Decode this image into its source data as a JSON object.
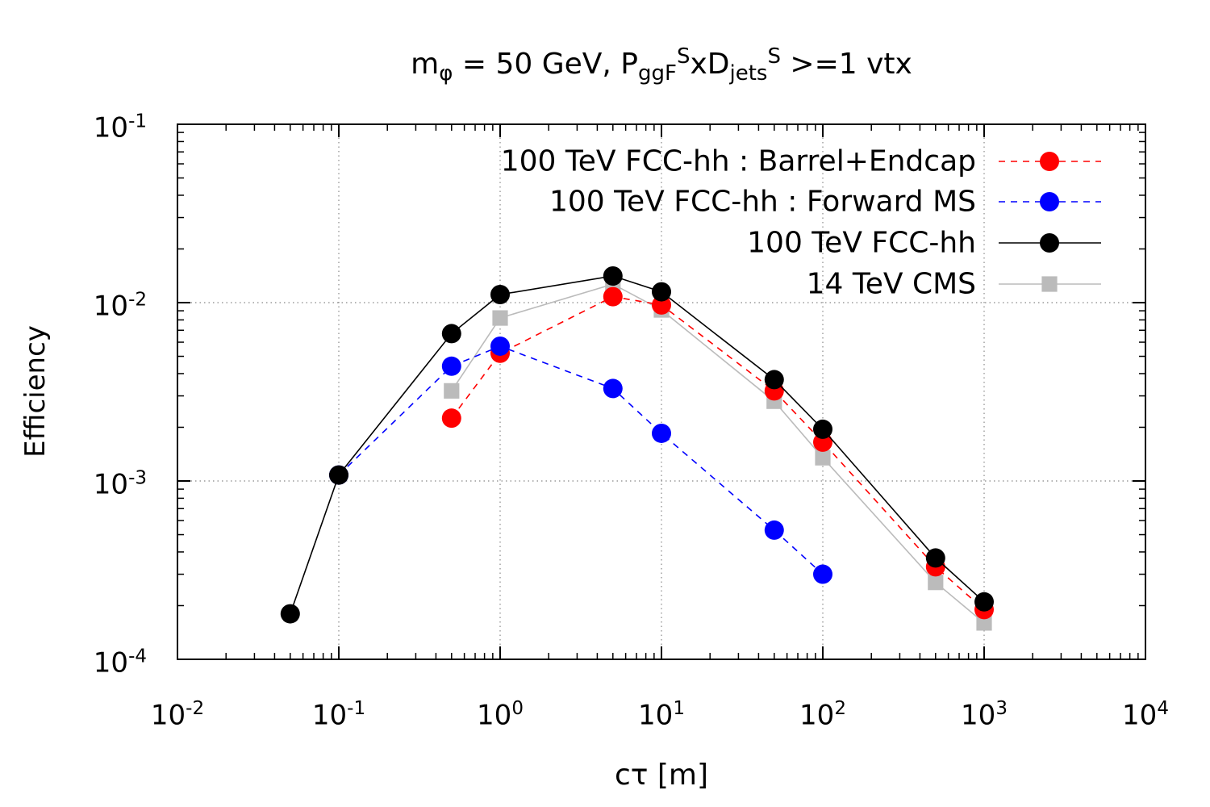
{
  "chart_data": {
    "type": "line",
    "title": {
      "prefix": "m",
      "prefix_sub": "φ",
      "middle": " = 50 GeV, P",
      "p_sub": "ggF",
      "p_sup": "S",
      "x": "xD",
      "d_sub": "jets",
      "d_sup": "S",
      "suffix": " >=1 vtx"
    },
    "xlabel": "cτ [m]",
    "ylabel": "Efficiency",
    "xscale": "log",
    "yscale": "log",
    "xlim": [
      0.01,
      10000
    ],
    "ylim": [
      0.0001,
      0.1
    ],
    "grid": true,
    "legend_position": "top-right",
    "x_ticks": [
      {
        "base": "10",
        "exp": "-2",
        "value": 0.01
      },
      {
        "base": "10",
        "exp": "-1",
        "value": 0.1
      },
      {
        "base": "10",
        "exp": "0",
        "value": 1
      },
      {
        "base": "10",
        "exp": "1",
        "value": 10
      },
      {
        "base": "10",
        "exp": "2",
        "value": 100
      },
      {
        "base": "10",
        "exp": "3",
        "value": 1000
      },
      {
        "base": "10",
        "exp": "4",
        "value": 10000
      }
    ],
    "y_ticks": [
      {
        "base": "10",
        "exp": "-4",
        "value": 0.0001
      },
      {
        "base": "10",
        "exp": "-3",
        "value": 0.001
      },
      {
        "base": "10",
        "exp": "-2",
        "value": 0.01
      },
      {
        "base": "10",
        "exp": "-1",
        "value": 0.1
      }
    ],
    "series": [
      {
        "name": "100 TeV FCC-hh : Barrel+Endcap",
        "color": "#ff0000",
        "line": "dashed",
        "marker": "circle",
        "x": [
          0.5,
          1,
          5,
          10,
          50,
          100,
          500,
          1000
        ],
        "y": [
          0.00225,
          0.0052,
          0.0108,
          0.0097,
          0.0032,
          0.00165,
          0.00033,
          0.00019
        ]
      },
      {
        "name": "100 TeV FCC-hh : Forward MS",
        "color": "#0000ff",
        "line": "dashed",
        "marker": "circle",
        "x": [
          0.1,
          0.5,
          1,
          5,
          10,
          50,
          100
        ],
        "y": [
          0.00108,
          0.0044,
          0.0057,
          0.0033,
          0.00185,
          0.00053,
          0.0003
        ]
      },
      {
        "name": "100 TeV FCC-hh",
        "color": "#000000",
        "line": "solid",
        "marker": "circle",
        "x": [
          0.05,
          0.1,
          0.5,
          1,
          5,
          10,
          50,
          100,
          500,
          1000
        ],
        "y": [
          0.00018,
          0.00108,
          0.0067,
          0.0111,
          0.0141,
          0.0115,
          0.0037,
          0.00195,
          0.00037,
          0.00021
        ]
      },
      {
        "name": "14 TeV CMS",
        "color": "#bbbbbb",
        "line": "solid",
        "marker": "square",
        "x": [
          0.5,
          1,
          5,
          10,
          50,
          100,
          500,
          1000
        ],
        "y": [
          0.0032,
          0.0082,
          0.0127,
          0.0091,
          0.0028,
          0.00135,
          0.00027,
          0.00016
        ]
      }
    ]
  }
}
